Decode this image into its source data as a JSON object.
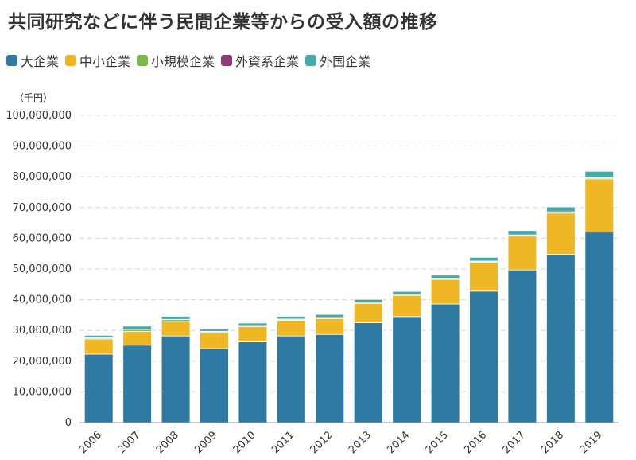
{
  "title": "共同研究などに伴う民間企業等からの受入額の推移",
  "unit_label": "（千円）",
  "chart_data": {
    "type": "bar",
    "stacked": true,
    "title": "共同研究などに伴う民間企業等からの受入額の推移",
    "xlabel": "",
    "ylabel": "（千円）",
    "ylim": [
      0,
      100000000
    ],
    "yticks": [
      0,
      10000000,
      20000000,
      30000000,
      40000000,
      50000000,
      60000000,
      70000000,
      80000000,
      90000000,
      100000000
    ],
    "ytick_labels": [
      "0",
      "10,000,000",
      "20,000,000",
      "30,000,000",
      "40,000,000",
      "50,000,000",
      "60,000,000",
      "70,000,000",
      "80,000,000",
      "90,000,000",
      "100,000,000"
    ],
    "categories": [
      "2006",
      "2007",
      "2008",
      "2009",
      "2010",
      "2011",
      "2012",
      "2013",
      "2014",
      "2015",
      "2016",
      "2017",
      "2018",
      "2019"
    ],
    "series": [
      {
        "name": "大企業",
        "color": "#2f7aa3",
        "values": [
          22300000,
          25200000,
          28200000,
          24100000,
          26300000,
          28200000,
          28700000,
          32500000,
          34500000,
          38600000,
          42800000,
          49700000,
          54800000,
          62000000
        ]
      },
      {
        "name": "中小企業",
        "color": "#f0b724",
        "values": [
          4900000,
          4500000,
          4700000,
          5200000,
          4900000,
          5100000,
          5100000,
          6300000,
          6900000,
          8000000,
          9400000,
          11000000,
          13400000,
          17300000
        ]
      },
      {
        "name": "小規模企業",
        "color": "#7cb84a",
        "values": [
          300000,
          600000,
          600000,
          300000,
          300000,
          300000,
          300000,
          300000,
          300000,
          300000,
          300000,
          300000,
          300000,
          300000
        ]
      },
      {
        "name": "外資系企業",
        "color": "#8e3c78",
        "values": [
          100000,
          100000,
          100000,
          100000,
          100000,
          100000,
          100000,
          100000,
          100000,
          100000,
          100000,
          100000,
          100000,
          100000
        ]
      },
      {
        "name": "外国企業",
        "color": "#44aba9",
        "values": [
          800000,
          1000000,
          1000000,
          700000,
          800000,
          900000,
          1000000,
          900000,
          900000,
          1000000,
          1200000,
          1400000,
          1600000,
          2100000
        ]
      }
    ],
    "legend_position": "top-left",
    "grid": true
  }
}
